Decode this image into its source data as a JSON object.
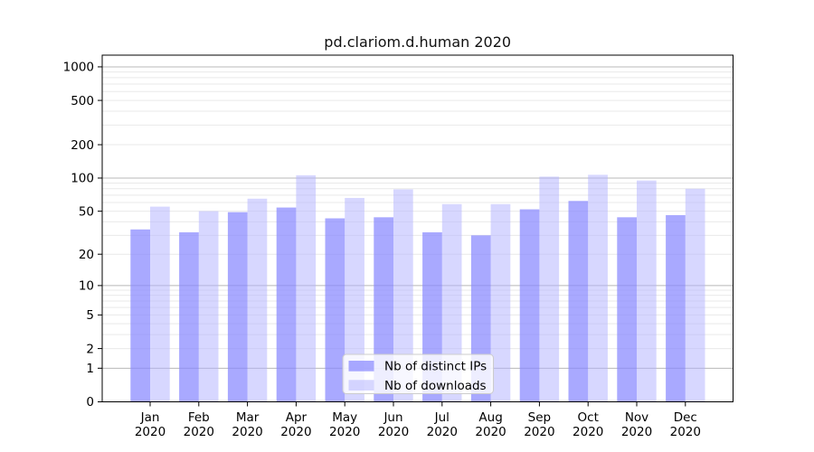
{
  "title": "pd.clariom.d.human 2020",
  "chart_data": {
    "type": "bar",
    "title": "pd.clariom.d.human 2020",
    "categories": [
      "Jan",
      "Feb",
      "Mar",
      "Apr",
      "May",
      "Jun",
      "Jul",
      "Aug",
      "Sep",
      "Oct",
      "Nov",
      "Dec"
    ],
    "year_label": "2020",
    "series": [
      {
        "name": "Nb of distinct IPs",
        "color": "rgba(136,136,255,0.72)",
        "values": [
          34,
          32,
          49,
          54,
          43,
          44,
          32,
          30,
          52,
          62,
          44,
          46
        ]
      },
      {
        "name": "Nb of downloads",
        "color": "rgba(176,176,255,0.50)",
        "values": [
          55,
          50,
          65,
          106,
          66,
          79,
          58,
          58,
          103,
          107,
          95,
          80
        ]
      }
    ],
    "y_ticks": [
      0,
      1,
      2,
      5,
      10,
      20,
      50,
      100,
      200,
      500,
      1000
    ],
    "y_scale": "log10(value+1)",
    "ylim": [
      0,
      1270
    ],
    "xlabel": "",
    "ylabel": "",
    "grid": "horizontal",
    "legend_position": "inside-bottom-center",
    "colors": {
      "major_grid": "#b8b8b8",
      "minor_grid": "#e9e9e9",
      "spine": "#000000",
      "legend_background": "rgba(255,255,255,0.8)",
      "legend_border": "#cccccc"
    }
  }
}
